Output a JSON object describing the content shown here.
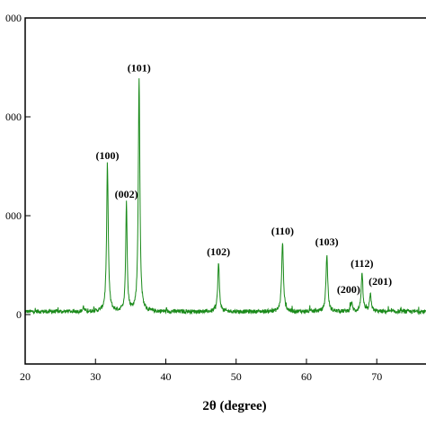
{
  "chart_data": {
    "type": "line",
    "title": "",
    "xlabel": "2θ (degree)",
    "ylabel": "",
    "xlim": [
      20,
      77
    ],
    "ylim": [
      -500,
      3000
    ],
    "grid": false,
    "legend": "none",
    "x_ticks": [
      20,
      30,
      40,
      50,
      60,
      70
    ],
    "x_tick_labels": [
      "20",
      "30",
      "40",
      "50",
      "60",
      "70"
    ],
    "y_ticks": [
      3000,
      2000,
      1000,
      0
    ],
    "y_tick_labels": [
      "000",
      "000",
      "000",
      "0"
    ],
    "series": [
      {
        "color": "#1a8a1a",
        "baseline": 30,
        "peaks": [
          {
            "x": 31.7,
            "y": 1500,
            "width": 0.28
          },
          {
            "x": 34.4,
            "y": 1120,
            "width": 0.25
          },
          {
            "x": 36.2,
            "y": 2380,
            "width": 0.27
          },
          {
            "x": 47.5,
            "y": 520,
            "width": 0.28
          },
          {
            "x": 56.6,
            "y": 730,
            "width": 0.3
          },
          {
            "x": 62.9,
            "y": 600,
            "width": 0.3
          },
          {
            "x": 66.4,
            "y": 120,
            "width": 0.3
          },
          {
            "x": 67.9,
            "y": 400,
            "width": 0.3
          },
          {
            "x": 69.1,
            "y": 200,
            "width": 0.3
          },
          {
            "x": 28.3,
            "y": 80,
            "width": 0.2
          }
        ]
      }
    ],
    "annotations": [
      {
        "text": "(100)",
        "x": 31.7,
        "y": 1575
      },
      {
        "text": "(002)",
        "x": 34.4,
        "y": 1180
      },
      {
        "text": "(101)",
        "x": 36.2,
        "y": 2460
      },
      {
        "text": "(102)",
        "x": 47.5,
        "y": 600
      },
      {
        "text": "(110)",
        "x": 56.6,
        "y": 810
      },
      {
        "text": "(103)",
        "x": 62.9,
        "y": 700
      },
      {
        "text": "(200)",
        "x": 66.0,
        "y": 220
      },
      {
        "text": "(112)",
        "x": 67.9,
        "y": 480
      },
      {
        "text": "(201)",
        "x": 70.5,
        "y": 300
      }
    ]
  }
}
